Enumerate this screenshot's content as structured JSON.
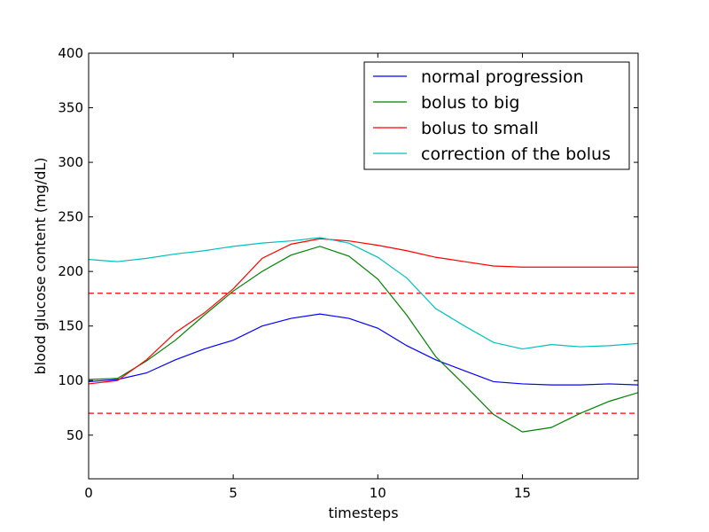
{
  "chart_data": {
    "type": "line",
    "title": "",
    "xlabel": "timesteps",
    "ylabel": "blood glucose content (mg/dL)",
    "xlim": [
      0,
      19
    ],
    "ylim": [
      10,
      400
    ],
    "xticks": [
      "0",
      "5",
      "10",
      "15"
    ],
    "yticks": [
      "50",
      "100",
      "150",
      "200",
      "250",
      "300",
      "350",
      "400"
    ],
    "grid": false,
    "legend_position": "top-right",
    "x": [
      0,
      1,
      2,
      3,
      4,
      5,
      6,
      7,
      8,
      9,
      10,
      11,
      12,
      13,
      14,
      15,
      16,
      17,
      18,
      19
    ],
    "series": [
      {
        "name": "normal progression",
        "color": "#0000ff",
        "values": [
          99,
          101,
          107,
          119,
          129,
          137,
          150,
          157,
          161,
          157,
          148,
          132,
          119,
          109,
          99,
          97,
          96,
          96,
          97,
          96
        ]
      },
      {
        "name": "bolus to big",
        "color": "#008000",
        "values": [
          101,
          102,
          118,
          137,
          160,
          182,
          200,
          215,
          223,
          214,
          193,
          160,
          122,
          96,
          69,
          53,
          57,
          70,
          81,
          89
        ]
      },
      {
        "name": "bolus to small",
        "color": "#ff0000",
        "values": [
          97,
          100,
          119,
          144,
          162,
          184,
          212,
          225,
          230,
          228,
          224,
          219,
          213,
          209,
          205,
          204,
          204,
          204,
          204,
          204
        ]
      },
      {
        "name": "correction of the bolus",
        "color": "#00bfbf",
        "values": [
          211,
          209,
          212,
          216,
          219,
          223,
          226,
          228,
          231,
          226,
          213,
          194,
          166,
          150,
          135,
          129,
          133,
          131,
          132,
          134
        ]
      }
    ],
    "reference_lines": [
      {
        "y": 180,
        "color": "#ff0000",
        "style": "dashed"
      },
      {
        "y": 70,
        "color": "#ff0000",
        "style": "dashed"
      }
    ]
  }
}
